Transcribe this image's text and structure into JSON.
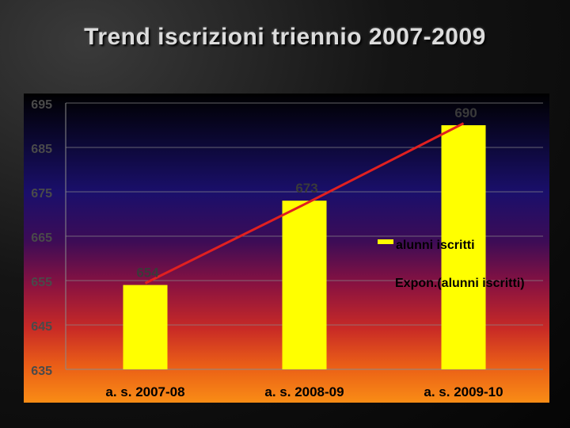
{
  "slide": {
    "title": "Trend iscrizioni triennio 2007-2009"
  },
  "chart_data": {
    "type": "bar",
    "categories": [
      "a. s. 2007-08",
      "a. s. 2008-09",
      "a. s. 2009-10"
    ],
    "series": [
      {
        "name": "alunni iscritti",
        "values": [
          654,
          673,
          690
        ],
        "color": "#ffff00"
      }
    ],
    "trendline": {
      "name": "Expon.(alunni iscritti)",
      "type": "exponential",
      "color": "#e02020"
    },
    "data_labels": [
      "654",
      "673",
      "690"
    ],
    "yticks": [
      635,
      645,
      655,
      665,
      675,
      685,
      695
    ],
    "ylim": [
      635,
      695
    ],
    "grid": true,
    "legend": "right"
  }
}
